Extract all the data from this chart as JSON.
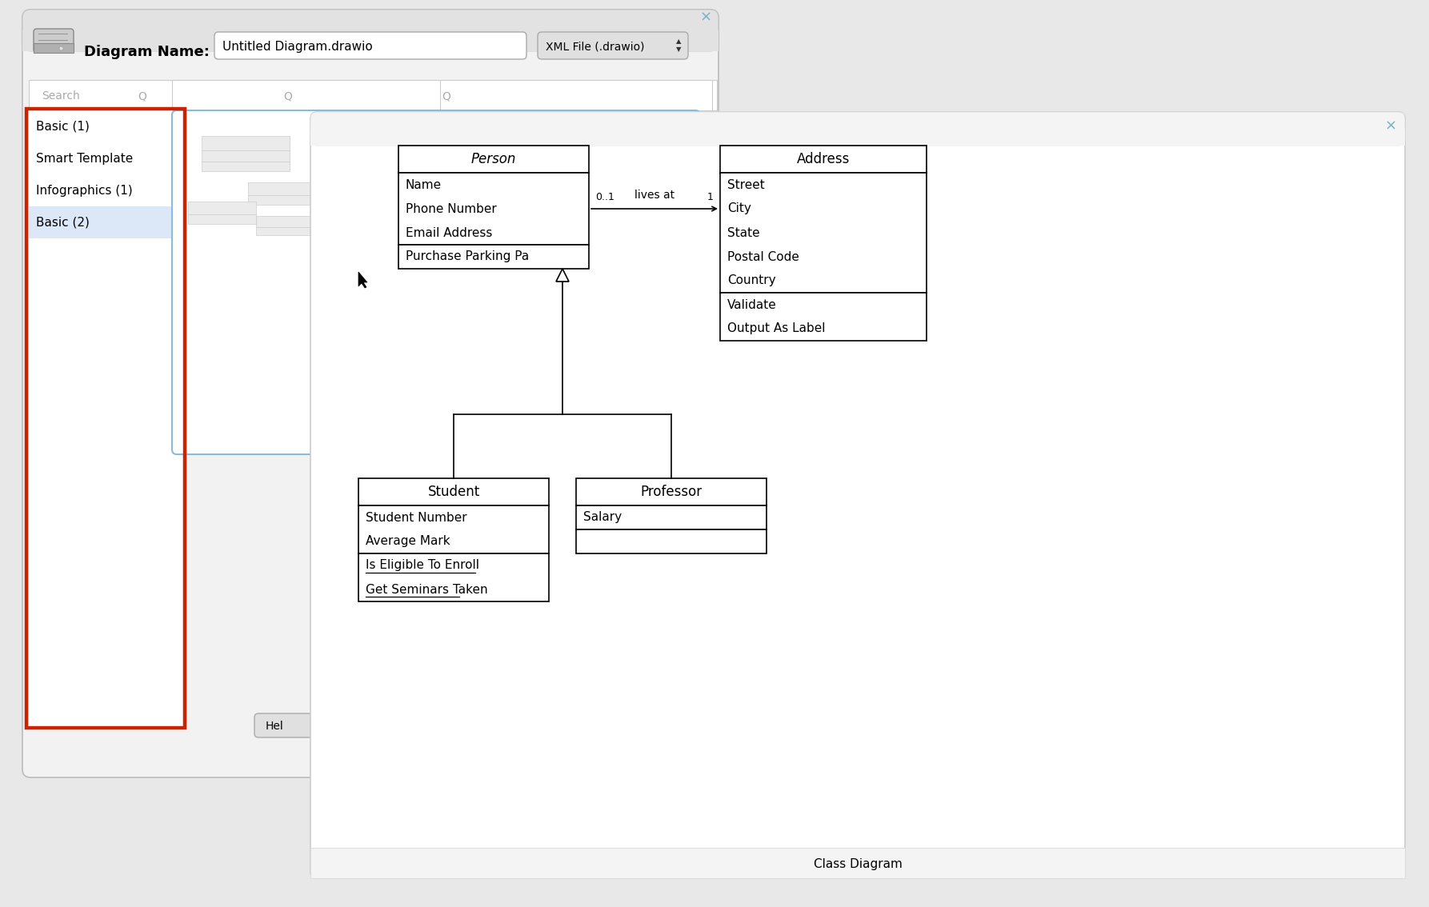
{
  "bg_color": "#e8e8e8",
  "dialog1_bg": "#f2f2f2",
  "dialog1_border": "#bbbbbb",
  "dialog2_bg": "#ffffff",
  "dialog2_border": "#cccccc",
  "title_text": "Diagram Name:",
  "filename_text": "Untitled Diagram.drawio",
  "filetype_text": "XML File (.drawio)",
  "search_text": "Search",
  "list_items": [
    "Basic (1)",
    "Smart Template",
    "Infographics (1)",
    "Basic (2)"
  ],
  "list_selected_index": 3,
  "red_box_color": "#cc2200",
  "template_label": "Class\nDiagram",
  "diagram_title": "Class Diagram",
  "person_name": "Person",
  "person_attrs": [
    "Name",
    "Phone Number",
    "Email Address"
  ],
  "person_methods": [
    "Purchase Parking Pa"
  ],
  "address_name": "Address",
  "address_attrs": [
    "Street",
    "City",
    "State",
    "Postal Code",
    "Country"
  ],
  "address_methods": [
    "Validate",
    "Output As Label"
  ],
  "student_name": "Student",
  "student_attrs": [
    "Student Number",
    "Average Mark"
  ],
  "student_methods": [
    "Is Eligible To Enroll",
    "Get Seminars Taken"
  ],
  "professor_name": "Professor",
  "professor_attrs": [
    "Salary"
  ],
  "assoc_label": "lives at",
  "assoc_left": "0..1",
  "assoc_right": "1",
  "close_x_color": "#7aaecc",
  "help_button_text": "Hel"
}
